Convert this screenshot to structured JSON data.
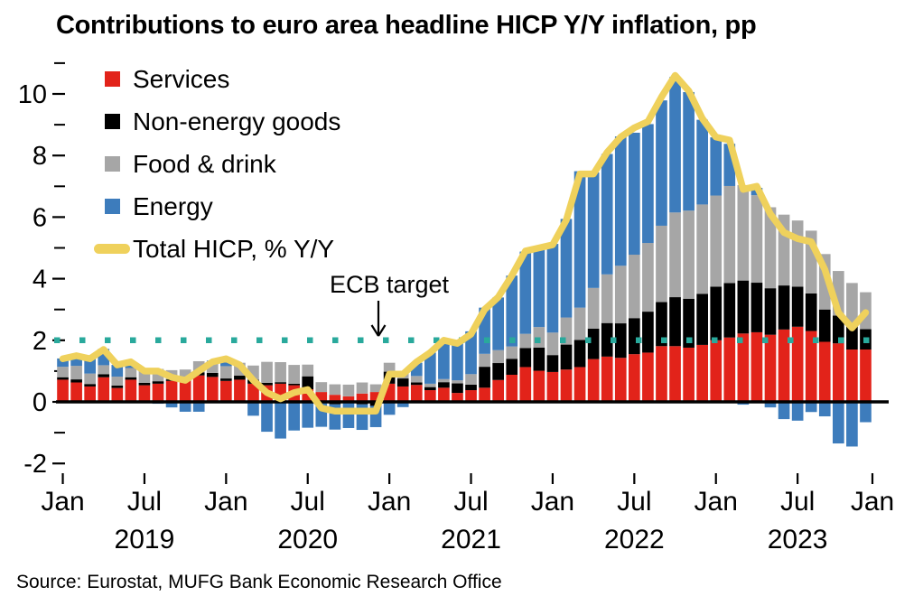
{
  "title": "Contributions to euro area headline HICP Y/Y inflation, pp",
  "source": "Source: Eurostat, MUFG Bank Economic Research Office",
  "annotation": {
    "label": "ECB target",
    "value": 2.0
  },
  "legend": {
    "items": [
      {
        "label": "Services",
        "color": "#e2231a",
        "swatch": "square"
      },
      {
        "label": "Non-energy goods",
        "color": "#000000",
        "swatch": "square"
      },
      {
        "label": "Food & drink",
        "color": "#a6a6a6",
        "swatch": "square"
      },
      {
        "label": "Energy",
        "color": "#3d7cbc",
        "swatch": "square"
      },
      {
        "label": "Total HICP, % Y/Y",
        "color": "#efd15c",
        "swatch": "line"
      }
    ]
  },
  "chart_data": {
    "type": "bar",
    "stacked": true,
    "unit": "pp",
    "title": "Contributions to euro area headline HICP Y/Y inflation, pp",
    "xlabel": "",
    "ylabel": "",
    "ylim": [
      -2.5,
      11.2
    ],
    "grid": false,
    "legend_position": "top-left-inside",
    "x": [
      "2019-01",
      "2019-02",
      "2019-03",
      "2019-04",
      "2019-05",
      "2019-06",
      "2019-07",
      "2019-08",
      "2019-09",
      "2019-10",
      "2019-11",
      "2019-12",
      "2020-01",
      "2020-02",
      "2020-03",
      "2020-04",
      "2020-05",
      "2020-06",
      "2020-07",
      "2020-08",
      "2020-09",
      "2020-10",
      "2020-11",
      "2020-12",
      "2021-01",
      "2021-02",
      "2021-03",
      "2021-04",
      "2021-05",
      "2021-06",
      "2021-07",
      "2021-08",
      "2021-09",
      "2021-10",
      "2021-11",
      "2021-12",
      "2022-01",
      "2022-02",
      "2022-03",
      "2022-04",
      "2022-05",
      "2022-06",
      "2022-07",
      "2022-08",
      "2022-09",
      "2022-10",
      "2022-11",
      "2022-12",
      "2023-01",
      "2023-02",
      "2023-03",
      "2023-04",
      "2023-05",
      "2023-06",
      "2023-07",
      "2023-08",
      "2023-09",
      "2023-10",
      "2023-11",
      "2023-12"
    ],
    "series": [
      {
        "name": "Services",
        "type": "bar",
        "color": "#e2231a",
        "values": [
          0.72,
          0.63,
          0.5,
          0.8,
          0.45,
          0.72,
          0.54,
          0.59,
          0.68,
          0.68,
          0.86,
          0.81,
          0.68,
          0.72,
          0.59,
          0.54,
          0.59,
          0.54,
          0.41,
          0.32,
          0.23,
          0.18,
          0.27,
          0.32,
          0.59,
          0.5,
          0.55,
          0.38,
          0.46,
          0.29,
          0.38,
          0.46,
          0.71,
          0.88,
          1.13,
          1.01,
          0.97,
          1.05,
          1.13,
          1.39,
          1.47,
          1.43,
          1.55,
          1.6,
          1.81,
          1.81,
          1.76,
          1.85,
          2.0,
          2.09,
          2.22,
          2.26,
          2.18,
          2.35,
          2.44,
          2.3,
          1.95,
          1.9,
          1.7,
          1.7
        ]
      },
      {
        "name": "Non-energy goods",
        "type": "bar",
        "color": "#000000",
        "values": [
          0.08,
          0.1,
          0.08,
          0.1,
          0.08,
          0.08,
          0.08,
          0.08,
          0.05,
          0.08,
          0.1,
          0.13,
          0.08,
          0.13,
          0.13,
          0.08,
          0.05,
          0.05,
          0.42,
          -0.03,
          -0.08,
          -0.03,
          -0.08,
          -0.13,
          0.39,
          0.26,
          0.08,
          0.1,
          0.18,
          0.31,
          0.18,
          0.68,
          0.55,
          0.52,
          0.62,
          0.75,
          0.55,
          0.81,
          0.88,
          0.99,
          1.09,
          1.12,
          1.17,
          1.33,
          1.43,
          1.59,
          1.59,
          1.66,
          1.74,
          1.77,
          1.72,
          1.61,
          1.51,
          1.43,
          1.3,
          1.22,
          1.05,
          0.9,
          0.78,
          0.66
        ]
      },
      {
        "name": "Food & drink",
        "type": "bar",
        "color": "#a6a6a6",
        "values": [
          0.34,
          0.44,
          0.34,
          0.29,
          0.29,
          0.3,
          0.36,
          0.4,
          0.3,
          0.29,
          0.36,
          0.38,
          0.4,
          0.42,
          0.46,
          0.68,
          0.65,
          0.61,
          0.38,
          0.32,
          0.34,
          0.38,
          0.36,
          0.25,
          0.29,
          0.25,
          0.21,
          0.11,
          0.1,
          0.1,
          0.34,
          0.42,
          0.42,
          0.4,
          0.46,
          0.67,
          0.73,
          0.88,
          1.05,
          1.32,
          1.58,
          1.87,
          2.06,
          2.23,
          2.48,
          2.75,
          2.86,
          2.9,
          2.96,
          3.15,
          3.1,
          2.84,
          2.63,
          2.3,
          2.15,
          2.04,
          1.8,
          1.45,
          1.38,
          1.2
        ]
      },
      {
        "name": "Energy",
        "type": "bar",
        "color": "#3d7cbc",
        "values": [
          0.27,
          0.36,
          0.53,
          0.53,
          0.38,
          0.17,
          0.05,
          -0.06,
          -0.18,
          -0.32,
          -0.32,
          0.02,
          0.19,
          -0.03,
          -0.45,
          -0.97,
          -1.19,
          -0.93,
          -0.84,
          -0.78,
          -0.82,
          -0.82,
          -0.83,
          -0.69,
          -0.42,
          -0.17,
          0.43,
          1.01,
          1.27,
          1.22,
          1.39,
          1.5,
          1.71,
          2.3,
          2.67,
          2.52,
          2.88,
          3.2,
          4.43,
          3.75,
          3.91,
          4.2,
          3.96,
          3.86,
          4.07,
          4.4,
          3.85,
          2.75,
          1.89,
          1.37,
          -0.09,
          0.24,
          -0.18,
          -0.56,
          -0.61,
          -0.33,
          -0.47,
          -1.35,
          -1.45,
          -0.66
        ]
      },
      {
        "name": "Total HICP, % Y/Y",
        "type": "line",
        "color": "#efd15c",
        "values": [
          1.4,
          1.5,
          1.4,
          1.7,
          1.2,
          1.3,
          1.0,
          1.0,
          0.8,
          0.7,
          1.0,
          1.3,
          1.4,
          1.2,
          0.7,
          0.3,
          0.1,
          0.3,
          0.4,
          -0.2,
          -0.3,
          -0.3,
          -0.3,
          -0.3,
          0.9,
          0.9,
          1.3,
          1.6,
          2.0,
          1.9,
          2.2,
          3.0,
          3.4,
          4.1,
          4.9,
          5.0,
          5.1,
          5.9,
          7.4,
          7.4,
          8.1,
          8.6,
          8.9,
          9.1,
          9.9,
          10.6,
          10.1,
          9.2,
          8.6,
          8.5,
          6.9,
          7.0,
          6.1,
          5.5,
          5.3,
          5.2,
          4.3,
          2.9,
          2.4,
          2.9
        ]
      }
    ],
    "target_line": {
      "label": "ECB target",
      "value": 2.0,
      "color": "#29a99c",
      "style": "dotted"
    },
    "y_axis": {
      "major": [
        -2,
        0,
        2,
        4,
        6,
        8,
        10
      ],
      "minor": [
        -1,
        1,
        3,
        5,
        7,
        9,
        11
      ]
    },
    "x_axis": {
      "ticks": [
        {
          "pos": 0,
          "label": "Jan"
        },
        {
          "pos": 6,
          "label": "Jul"
        },
        {
          "pos": 12,
          "label": "Jan"
        },
        {
          "pos": 18,
          "label": "Jul"
        },
        {
          "pos": 24,
          "label": "Jan"
        },
        {
          "pos": 30,
          "label": "Jul"
        },
        {
          "pos": 36,
          "label": "Jan"
        },
        {
          "pos": 42,
          "label": "Jul"
        },
        {
          "pos": 48,
          "label": "Jan"
        },
        {
          "pos": 54,
          "label": "Jul"
        },
        {
          "pos": 60,
          "label": "Jan"
        }
      ],
      "years": [
        {
          "pos": 6,
          "label": "2019"
        },
        {
          "pos": 18,
          "label": "2020"
        },
        {
          "pos": 30,
          "label": "2021"
        },
        {
          "pos": 42,
          "label": "2022"
        },
        {
          "pos": 54,
          "label": "2023"
        }
      ]
    }
  }
}
